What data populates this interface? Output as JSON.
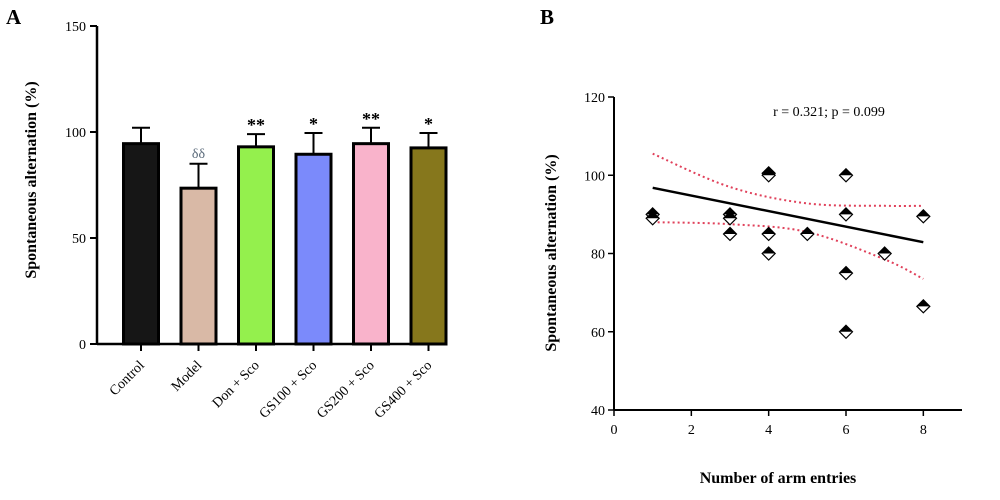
{
  "chart_data": [
    {
      "panel": "A",
      "type": "bar",
      "ylabel": "Spontaneous alternation (%)",
      "xlabel": "",
      "ylim": [
        0,
        150
      ],
      "yticks": [
        0,
        50,
        100,
        150
      ],
      "categories": [
        "Control",
        "Model",
        "Don + Sco",
        "GS100 + Sco",
        "GS200 + Sco",
        "GS400 + Sco"
      ],
      "values": [
        94.5,
        73.5,
        93,
        89.5,
        94.5,
        92.5
      ],
      "errors": [
        7.5,
        11.5,
        6,
        10,
        7.5,
        7
      ],
      "significance": [
        "",
        "δδ",
        "**",
        "*",
        "**",
        "*"
      ],
      "colors": [
        "#161616",
        "#d9b9a6",
        "#94f04d",
        "#7b8afb",
        "#f9b3cb",
        "#86771c"
      ]
    },
    {
      "panel": "B",
      "type": "scatter",
      "xlabel": "Number of arm entries",
      "ylabel": "Spontaneous alternation (%)",
      "xlim": [
        0,
        9
      ],
      "ylim": [
        40,
        120
      ],
      "xticks": [
        0,
        2,
        4,
        6,
        8
      ],
      "yticks": [
        40,
        60,
        80,
        100,
        120
      ],
      "annotation": "r = 0.321; p = 0.099",
      "points": [
        {
          "x": 1,
          "y": 90
        },
        {
          "x": 1,
          "y": 89
        },
        {
          "x": 3,
          "y": 90
        },
        {
          "x": 3,
          "y": 89
        },
        {
          "x": 3,
          "y": 85
        },
        {
          "x": 4,
          "y": 100.5
        },
        {
          "x": 4,
          "y": 100
        },
        {
          "x": 4,
          "y": 85
        },
        {
          "x": 4,
          "y": 80
        },
        {
          "x": 5,
          "y": 85
        },
        {
          "x": 6,
          "y": 100
        },
        {
          "x": 6,
          "y": 90
        },
        {
          "x": 6,
          "y": 75
        },
        {
          "x": 6,
          "y": 60
        },
        {
          "x": 7,
          "y": 80
        },
        {
          "x": 8,
          "y": 89.5
        },
        {
          "x": 8,
          "y": 66.5
        }
      ],
      "fit_line": {
        "x": [
          1,
          8
        ],
        "y": [
          96.8,
          82.9
        ]
      },
      "ci_upper": {
        "x": [
          1,
          3,
          5,
          7,
          8
        ],
        "y": [
          105.5,
          97,
          92.8,
          92.2,
          92.2
        ]
      },
      "ci_lower": {
        "x": [
          1,
          3,
          5,
          7,
          8
        ],
        "y": [
          88,
          87.5,
          85.5,
          78.5,
          73.5
        ]
      },
      "fit_color": "#000000",
      "ci_color": "#e0405a"
    }
  ]
}
